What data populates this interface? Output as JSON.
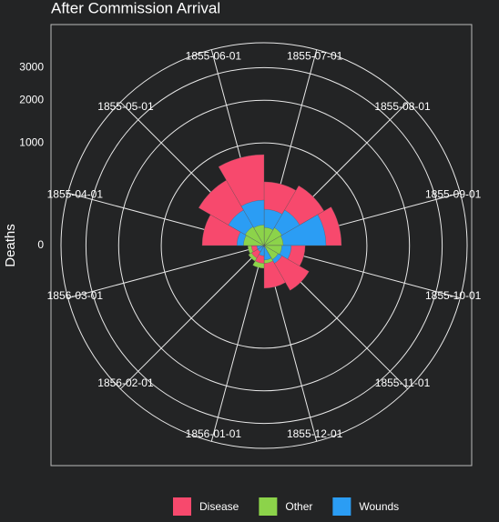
{
  "chart_data": {
    "type": "rose",
    "title": "After Commission Arrival",
    "y_label": "Deaths",
    "scale": "sqrt",
    "categories": [
      "1855-07-01",
      "1855-08-01",
      "1855-09-01",
      "1855-10-01",
      "1855-11-01",
      "1855-12-01",
      "1856-01-01",
      "1856-02-01",
      "1856-03-01",
      "1855-04-01",
      "1855-05-01",
      "1855-06-01"
    ],
    "series": [
      {
        "name": "Disease",
        "color": "#f7496d",
        "values": [
          385,
          453,
          567,
          160,
          255,
          173,
          30,
          20,
          15,
          363,
          540,
          785
        ]
      },
      {
        "name": "Other",
        "color": "#8cd34a",
        "values": [
          31,
          40,
          35,
          30,
          25,
          30,
          49,
          31,
          25,
          40,
          45,
          40
        ]
      },
      {
        "name": "Wounds",
        "color": "#2b9df4",
        "values": [
          125,
          160,
          363,
          70,
          40,
          20,
          10,
          5,
          5,
          70,
          160,
          196
        ]
      }
    ],
    "ylim": [
      0,
      3900
    ],
    "yticks": [
      0,
      1000,
      2000,
      3000
    ],
    "grid": true,
    "legend": "bottom"
  }
}
